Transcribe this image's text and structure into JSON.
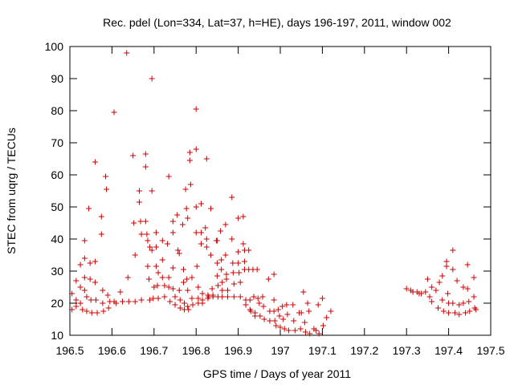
{
  "chart_data": {
    "type": "scatter",
    "title": "Rec. pdel (Lon=334, Lat=37, h=HE), days 196-197, 2011, window 002",
    "xlabel": "GPS time / Days of year 2011",
    "ylabel": "STEC from uqrg / TECUs",
    "xlim": [
      196.5,
      197.5
    ],
    "ylim": [
      10,
      100
    ],
    "xticks": [
      "196.5",
      "196.6",
      "196.7",
      "196.8",
      "196.9",
      "197",
      "197.1",
      "197.2",
      "197.3",
      "197.4",
      "197.5"
    ],
    "yticks": [
      "10",
      "20",
      "30",
      "40",
      "50",
      "60",
      "70",
      "80",
      "90",
      "100"
    ],
    "grid": false,
    "marker": "+",
    "color": "#cc0000",
    "points": [
      [
        196.505,
        23
      ],
      [
        196.505,
        18
      ],
      [
        196.515,
        27
      ],
      [
        196.515,
        21
      ],
      [
        196.515,
        19
      ],
      [
        196.525,
        32
      ],
      [
        196.525,
        25
      ],
      [
        196.525,
        20
      ],
      [
        196.53,
        18
      ],
      [
        196.535,
        39.5
      ],
      [
        196.535,
        34
      ],
      [
        196.535,
        28
      ],
      [
        196.535,
        24
      ],
      [
        196.54,
        22
      ],
      [
        196.54,
        17.5
      ],
      [
        196.545,
        49.5
      ],
      [
        196.548,
        32.5
      ],
      [
        196.548,
        27.5
      ],
      [
        196.55,
        21
      ],
      [
        196.552,
        17
      ],
      [
        196.56,
        64
      ],
      [
        196.56,
        33
      ],
      [
        196.56,
        26.5
      ],
      [
        196.562,
        21
      ],
      [
        196.565,
        17
      ],
      [
        196.575,
        47
      ],
      [
        196.575,
        41.5
      ],
      [
        196.578,
        24
      ],
      [
        196.578,
        20
      ],
      [
        196.58,
        17.5
      ],
      [
        196.585,
        59.5
      ],
      [
        196.587,
        55.5
      ],
      [
        196.59,
        22.5
      ],
      [
        196.595,
        20.5
      ],
      [
        196.592,
        18.5
      ],
      [
        196.605,
        79.5
      ],
      [
        196.605,
        20.5
      ],
      [
        196.61,
        20
      ],
      [
        196.62,
        23.5
      ],
      [
        196.625,
        20.5
      ],
      [
        196.635,
        98
      ],
      [
        196.638,
        28
      ],
      [
        196.64,
        20.5
      ],
      [
        196.65,
        66
      ],
      [
        196.652,
        45
      ],
      [
        196.655,
        35
      ],
      [
        196.655,
        20.5
      ],
      [
        196.665,
        55
      ],
      [
        196.665,
        51.5
      ],
      [
        196.668,
        45.5
      ],
      [
        196.67,
        41.5
      ],
      [
        196.67,
        21
      ],
      [
        196.68,
        66.5
      ],
      [
        196.68,
        62.5
      ],
      [
        196.68,
        45.5
      ],
      [
        196.683,
        41.5
      ],
      [
        196.685,
        39.5
      ],
      [
        196.685,
        31.5
      ],
      [
        196.688,
        27.5
      ],
      [
        196.69,
        21
      ],
      [
        196.695,
        90
      ],
      [
        196.695,
        55
      ],
      [
        196.69,
        37.5
      ],
      [
        196.695,
        36.5
      ],
      [
        196.698,
        21.5
      ],
      [
        196.7,
        25
      ],
      [
        196.705,
        42
      ],
      [
        196.705,
        37.5
      ],
      [
        196.705,
        31.5
      ],
      [
        196.71,
        29.5
      ],
      [
        196.708,
        25.5
      ],
      [
        196.71,
        21.5
      ],
      [
        196.72,
        39.5
      ],
      [
        196.72,
        33.5
      ],
      [
        196.72,
        28
      ],
      [
        196.725,
        25.5
      ],
      [
        196.725,
        22
      ],
      [
        196.735,
        59.5
      ],
      [
        196.732,
        38.5
      ],
      [
        196.735,
        28
      ],
      [
        196.735,
        25
      ],
      [
        196.738,
        20.5
      ],
      [
        196.745,
        45.5
      ],
      [
        196.745,
        42
      ],
      [
        196.745,
        31
      ],
      [
        196.745,
        24.5
      ],
      [
        196.75,
        22
      ],
      [
        196.75,
        19.5
      ],
      [
        196.755,
        47.5
      ],
      [
        196.757,
        36.5
      ],
      [
        196.76,
        35.5
      ],
      [
        196.76,
        24
      ],
      [
        196.762,
        21
      ],
      [
        196.762,
        18.5
      ],
      [
        196.768,
        44.5
      ],
      [
        196.77,
        30.5
      ],
      [
        196.77,
        26.5
      ],
      [
        196.772,
        20
      ],
      [
        196.772,
        18
      ],
      [
        196.775,
        55.5
      ],
      [
        196.777,
        49.5
      ],
      [
        196.78,
        46.5
      ],
      [
        196.778,
        27.5
      ],
      [
        196.78,
        24
      ],
      [
        196.78,
        19
      ],
      [
        196.782,
        18
      ],
      [
        196.785,
        67
      ],
      [
        196.785,
        64.5
      ],
      [
        196.787,
        57
      ],
      [
        196.79,
        28
      ],
      [
        196.79,
        21.5
      ],
      [
        196.792,
        19.5
      ],
      [
        196.8,
        80.5
      ],
      [
        196.8,
        68
      ],
      [
        196.8,
        50
      ],
      [
        196.8,
        42
      ],
      [
        196.802,
        31.5
      ],
      [
        196.805,
        25
      ],
      [
        196.805,
        21.5
      ],
      [
        196.805,
        20
      ],
      [
        196.812,
        51
      ],
      [
        196.812,
        42
      ],
      [
        196.812,
        38.5
      ],
      [
        196.815,
        23
      ],
      [
        196.815,
        21
      ],
      [
        196.815,
        20
      ],
      [
        196.825,
        65
      ],
      [
        196.822,
        43.5
      ],
      [
        196.825,
        40
      ],
      [
        196.825,
        37.5
      ],
      [
        196.828,
        22.5
      ],
      [
        196.83,
        22
      ],
      [
        196.828,
        21.5
      ],
      [
        196.835,
        49.5
      ],
      [
        196.835,
        35
      ],
      [
        196.838,
        24.5
      ],
      [
        196.84,
        22.5
      ],
      [
        196.84,
        22
      ],
      [
        196.848,
        39.5
      ],
      [
        196.85,
        39.5
      ],
      [
        196.85,
        32.5
      ],
      [
        196.85,
        28.5
      ],
      [
        196.852,
        25.5
      ],
      [
        196.852,
        22
      ],
      [
        196.858,
        42.5
      ],
      [
        196.86,
        33.5
      ],
      [
        196.86,
        30.5
      ],
      [
        196.862,
        26.5
      ],
      [
        196.862,
        24
      ],
      [
        196.862,
        22
      ],
      [
        196.87,
        44.5
      ],
      [
        196.87,
        35
      ],
      [
        196.872,
        29
      ],
      [
        196.872,
        27.5
      ],
      [
        196.875,
        22
      ],
      [
        196.875,
        24
      ],
      [
        196.885,
        53
      ],
      [
        196.885,
        40
      ],
      [
        196.887,
        32.5
      ],
      [
        196.888,
        29.5
      ],
      [
        196.89,
        26
      ],
      [
        196.89,
        22
      ],
      [
        196.9,
        46.5
      ],
      [
        196.9,
        36
      ],
      [
        196.9,
        32.5
      ],
      [
        196.902,
        29.5
      ],
      [
        196.905,
        26.5
      ],
      [
        196.905,
        22
      ],
      [
        196.912,
        47
      ],
      [
        196.912,
        38.5
      ],
      [
        196.915,
        36.5
      ],
      [
        196.915,
        33
      ],
      [
        196.915,
        30.5
      ],
      [
        196.918,
        21
      ],
      [
        196.918,
        19.5
      ],
      [
        196.925,
        36.5
      ],
      [
        196.925,
        30.5
      ],
      [
        196.928,
        21
      ],
      [
        196.928,
        18
      ],
      [
        196.93,
        17.5
      ],
      [
        196.935,
        30.5
      ],
      [
        196.937,
        22
      ],
      [
        196.94,
        17
      ],
      [
        196.94,
        16
      ],
      [
        196.945,
        30.5
      ],
      [
        196.947,
        21.5
      ],
      [
        196.95,
        20
      ],
      [
        196.952,
        16
      ],
      [
        196.958,
        22
      ],
      [
        196.96,
        19
      ],
      [
        196.962,
        15
      ],
      [
        196.972,
        27.5
      ],
      [
        196.975,
        17.5
      ],
      [
        196.975,
        14.5
      ],
      [
        196.985,
        29
      ],
      [
        196.985,
        21
      ],
      [
        196.985,
        17.5
      ],
      [
        196.987,
        14.5
      ],
      [
        196.99,
        13
      ],
      [
        196.995,
        18
      ],
      [
        196.998,
        16
      ],
      [
        197.0,
        12.5
      ],
      [
        197.005,
        19
      ],
      [
        197.007,
        15
      ],
      [
        197.01,
        12
      ],
      [
        197.015,
        19.5
      ],
      [
        197.017,
        16.5
      ],
      [
        197.02,
        11.5
      ],
      [
        197.03,
        19.5
      ],
      [
        197.032,
        14.5
      ],
      [
        197.035,
        11.5
      ],
      [
        197.045,
        17
      ],
      [
        197.048,
        12
      ],
      [
        197.05,
        17
      ],
      [
        197.055,
        23.5
      ],
      [
        197.058,
        14
      ],
      [
        197.06,
        11
      ],
      [
        197.065,
        20
      ],
      [
        197.068,
        17.5
      ],
      [
        197.07,
        10.5
      ],
      [
        197.08,
        12
      ],
      [
        197.085,
        11.5
      ],
      [
        197.09,
        19.5
      ],
      [
        197.092,
        10.5
      ],
      [
        197.1,
        21.5
      ],
      [
        197.102,
        13
      ],
      [
        197.11,
        15.5
      ],
      [
        197.12,
        17.5
      ],
      [
        197.3,
        24.5
      ],
      [
        197.31,
        24
      ],
      [
        197.315,
        23.5
      ],
      [
        197.325,
        23.5
      ],
      [
        197.33,
        23
      ],
      [
        197.335,
        23
      ],
      [
        197.345,
        23.5
      ],
      [
        197.35,
        27.5
      ],
      [
        197.355,
        22
      ],
      [
        197.36,
        20.5
      ],
      [
        197.36,
        25
      ],
      [
        197.37,
        24
      ],
      [
        197.375,
        18.5
      ],
      [
        197.378,
        26.5
      ],
      [
        197.385,
        28.5
      ],
      [
        197.385,
        21
      ],
      [
        197.388,
        17.5
      ],
      [
        197.395,
        33
      ],
      [
        197.395,
        31.5
      ],
      [
        197.398,
        23
      ],
      [
        197.4,
        20
      ],
      [
        197.4,
        17
      ],
      [
        197.41,
        36.5
      ],
      [
        197.41,
        30.5
      ],
      [
        197.41,
        20
      ],
      [
        197.415,
        17
      ],
      [
        197.42,
        27
      ],
      [
        197.425,
        19.5
      ],
      [
        197.425,
        16.5
      ],
      [
        197.435,
        25
      ],
      [
        197.435,
        20
      ],
      [
        197.44,
        17
      ],
      [
        197.445,
        32
      ],
      [
        197.445,
        24.5
      ],
      [
        197.448,
        20.5
      ],
      [
        197.45,
        17.5
      ],
      [
        197.46,
        28
      ],
      [
        197.46,
        22
      ],
      [
        197.462,
        18.5
      ],
      [
        197.465,
        18
      ]
    ]
  }
}
